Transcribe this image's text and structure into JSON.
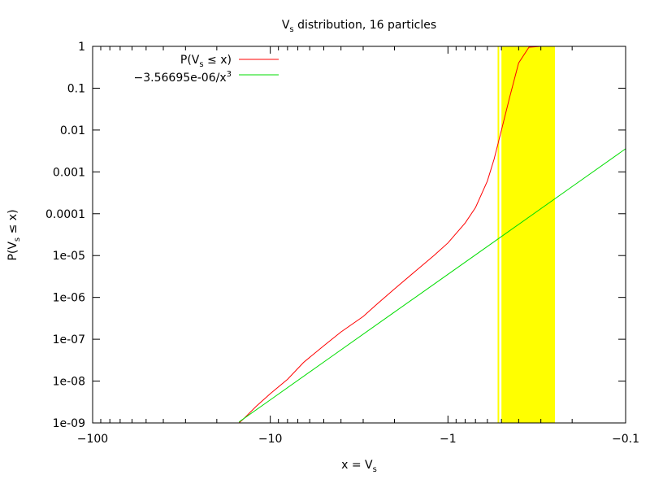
{
  "chart_data": {
    "type": "line",
    "title": "Vs distribution, 16 particles",
    "xlabel": "x = Vs",
    "ylabel": "P(Vs ≤ x)",
    "xscale": "log-negative",
    "yscale": "log",
    "xlim": [
      -100,
      -0.1
    ],
    "ylim": [
      1e-09,
      1
    ],
    "x_tick_labels": [
      "−100",
      "−10",
      "−1",
      "−0.1"
    ],
    "x_tick_values": [
      -100,
      -10,
      -1,
      -0.1
    ],
    "y_tick_labels": [
      "1e-09",
      "1e-08",
      "1e-07",
      "1e-06",
      "1e-05",
      "0.0001",
      "0.001",
      "0.01",
      "0.1",
      "1"
    ],
    "y_tick_values": [
      1e-09,
      1e-08,
      1e-07,
      1e-06,
      1e-05,
      0.0001,
      0.001,
      0.01,
      0.1,
      1
    ],
    "legend_position": "top-left",
    "grid": false,
    "highlight_band": {
      "x_from": -0.5,
      "x_to": -0.25,
      "color": "#ffff00"
    },
    "highlight_line": {
      "x": -0.52,
      "color": "#ffff00"
    },
    "series": [
      {
        "name": "P(Vs ≤ x)",
        "color": "#ff0000",
        "x": [
          -15,
          -14,
          -12,
          -10,
          -8,
          -6.5,
          -5,
          -4,
          -3,
          -2.5,
          -2,
          -1.5,
          -1.2,
          -1,
          -0.8,
          -0.7,
          -0.6,
          -0.55,
          -0.5,
          -0.45,
          -0.4,
          -0.35,
          -0.3
        ],
        "y": [
          1e-09,
          1.3e-09,
          2.5e-09,
          5e-09,
          1.1e-08,
          2.8e-08,
          7e-08,
          1.5e-07,
          3.5e-07,
          7e-07,
          1.6e-06,
          4.5e-06,
          1e-05,
          2e-05,
          6e-05,
          0.00014,
          0.0006,
          0.002,
          0.01,
          0.06,
          0.4,
          0.95,
          1
        ]
      },
      {
        "name": "−3.56695e-06/x³",
        "color": "#00dd00",
        "x": [
          -15,
          -10,
          -5,
          -2,
          -1,
          -0.5,
          -0.2,
          -0.1
        ],
        "y": [
          1.0568e-09,
          3.567e-09,
          2.854e-08,
          4.459e-07,
          3.567e-06,
          2.854e-05,
          0.0004459,
          0.003567
        ]
      }
    ]
  }
}
